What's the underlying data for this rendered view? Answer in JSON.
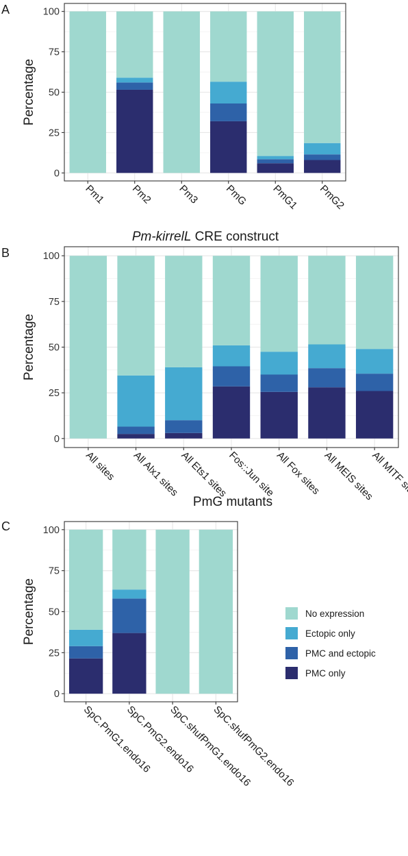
{
  "legend": {
    "entries": [
      {
        "label": "No expression",
        "color": "#9fd8cf"
      },
      {
        "label": "Ectopic only",
        "color": "#45aad1"
      },
      {
        "label": "PMC and ectopic",
        "color": "#2e62a8"
      },
      {
        "label": "PMC only",
        "color": "#2b2d6e"
      }
    ]
  },
  "chart_data": [
    {
      "panel": "A",
      "type": "bar",
      "stacked": true,
      "ylabel": "Percentage",
      "xlabel_italic": "Pm-kirrelL",
      "xlabel_rest": " CRE construct",
      "ylim": [
        0,
        100
      ],
      "yticks": [
        0,
        25,
        50,
        75,
        100
      ],
      "grid": true,
      "categories": [
        "Pm1",
        "Pm2",
        "Pm3",
        "PmG",
        "PmG1",
        "PmG2"
      ],
      "series": [
        {
          "name": "PMC only",
          "values": [
            0,
            51.5,
            0,
            32,
            6,
            8
          ]
        },
        {
          "name": "PMC and ectopic",
          "values": [
            0,
            4.5,
            0,
            11,
            2.5,
            3.5
          ]
        },
        {
          "name": "Ectopic only",
          "values": [
            0,
            3,
            0,
            13.5,
            2,
            7
          ]
        },
        {
          "name": "No expression",
          "values": [
            100,
            41,
            100,
            43.5,
            89.5,
            81.5
          ]
        }
      ]
    },
    {
      "panel": "B",
      "type": "bar",
      "stacked": true,
      "ylabel": "Percentage",
      "xlabel": "PmG mutants",
      "ylim": [
        0,
        100
      ],
      "yticks": [
        0,
        25,
        50,
        75,
        100
      ],
      "grid": true,
      "categories": [
        "All sites",
        "All Alx1 sites",
        "All Ets1 sites",
        "Fos::Jun site",
        "All Fox sites",
        "All MEIS sites",
        "All MITF sites"
      ],
      "series": [
        {
          "name": "PMC only",
          "values": [
            0,
            2.5,
            3,
            28.5,
            25.5,
            28,
            26
          ]
        },
        {
          "name": "PMC and ectopic",
          "values": [
            0,
            4,
            7,
            11,
            9.5,
            10.5,
            9.5
          ]
        },
        {
          "name": "Ectopic only",
          "values": [
            0,
            28,
            29,
            11.5,
            12.5,
            13,
            13.5
          ]
        },
        {
          "name": "No expression",
          "values": [
            100,
            65.5,
            61,
            49,
            52.5,
            48.5,
            51
          ]
        }
      ]
    },
    {
      "panel": "C",
      "type": "bar",
      "stacked": true,
      "ylabel": "Percentage",
      "xlabel": "",
      "ylim": [
        0,
        100
      ],
      "yticks": [
        0,
        25,
        50,
        75,
        100
      ],
      "grid": true,
      "legend_position": "right",
      "categories": [
        "SpC.PmG1.endo16",
        "SpC.PmG2.endo16",
        "SpC.shufPmG1.endo16",
        "SpC.shufPmG2.endo16"
      ],
      "series": [
        {
          "name": "PMC only",
          "values": [
            21.5,
            37,
            0,
            0
          ]
        },
        {
          "name": "PMC and ectopic",
          "values": [
            7.5,
            21,
            0,
            0
          ]
        },
        {
          "name": "Ectopic only",
          "values": [
            10,
            5.5,
            0,
            0
          ]
        },
        {
          "name": "No expression",
          "values": [
            61,
            36.5,
            100,
            100
          ]
        }
      ]
    }
  ]
}
